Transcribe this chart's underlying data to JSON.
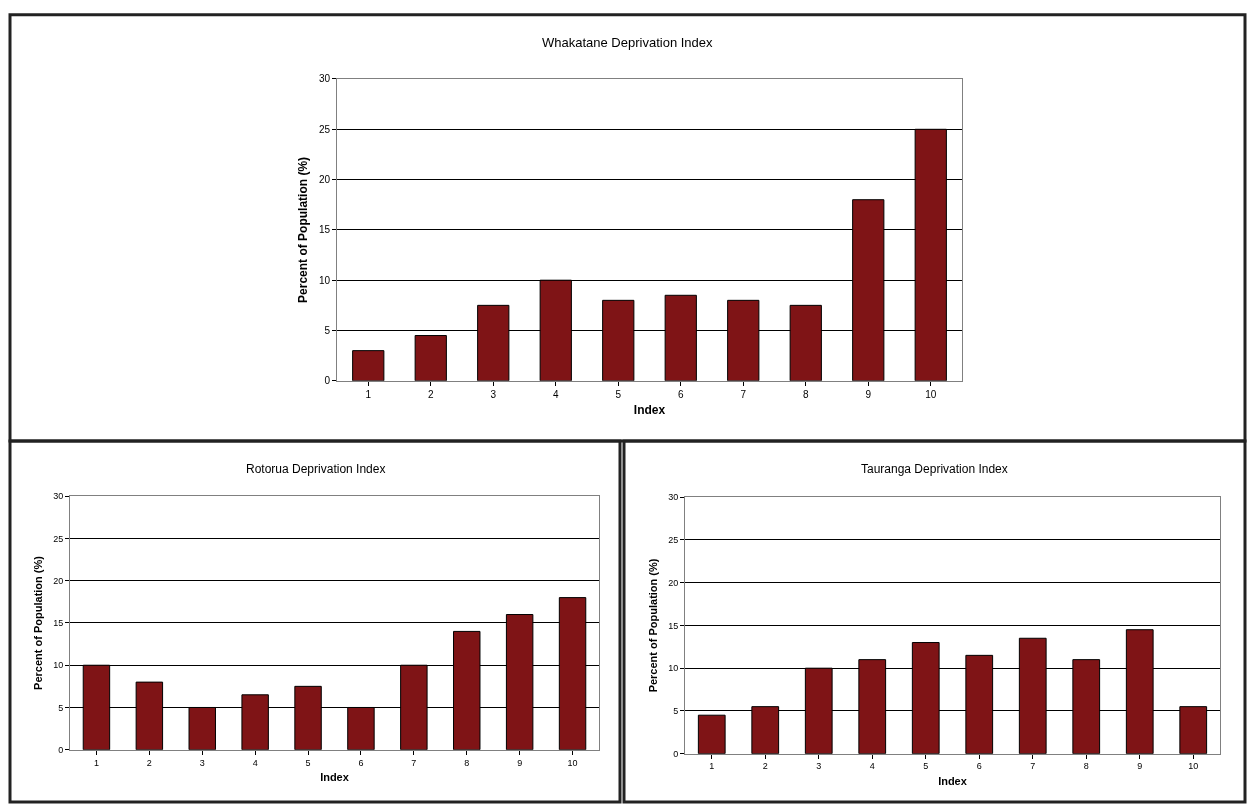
{
  "chart_data": [
    {
      "type": "bar",
      "title": "Whakatane Deprivation Index",
      "xlabel": "Index",
      "ylabel": "Percent of Population (%)",
      "categories": [
        "1",
        "2",
        "3",
        "4",
        "5",
        "6",
        "7",
        "8",
        "9",
        "10"
      ],
      "values": [
        3,
        4.5,
        7.5,
        10,
        8,
        8.5,
        8,
        7.5,
        18,
        25
      ],
      "color": "#7f1416",
      "ylim": [
        0,
        30
      ],
      "yticks": [
        0,
        5,
        10,
        15,
        20,
        25,
        30
      ],
      "grid": "y"
    },
    {
      "type": "bar",
      "title": "Rotorua Deprivation Index",
      "xlabel": "Index",
      "ylabel": "Percent of Population (%)",
      "categories": [
        "1",
        "2",
        "3",
        "4",
        "5",
        "6",
        "7",
        "8",
        "9",
        "10"
      ],
      "values": [
        10,
        8,
        5,
        6.5,
        7.5,
        5,
        10,
        14,
        16,
        18
      ],
      "color": "#7f1416",
      "ylim": [
        0,
        30
      ],
      "yticks": [
        0,
        5,
        10,
        15,
        20,
        25,
        30
      ],
      "grid": "y"
    },
    {
      "type": "bar",
      "title": "Tauranga Deprivation Index",
      "xlabel": "Index",
      "ylabel": "Percent of Population (%)",
      "categories": [
        "1",
        "2",
        "3",
        "4",
        "5",
        "6",
        "7",
        "8",
        "9",
        "10"
      ],
      "values": [
        4.5,
        5.5,
        10,
        11,
        13,
        11.5,
        13.5,
        11,
        14.5,
        5.5
      ],
      "color": "#7f1416",
      "ylim": [
        0,
        30
      ],
      "yticks": [
        0,
        5,
        10,
        15,
        20,
        25,
        30
      ],
      "grid": "y"
    }
  ]
}
